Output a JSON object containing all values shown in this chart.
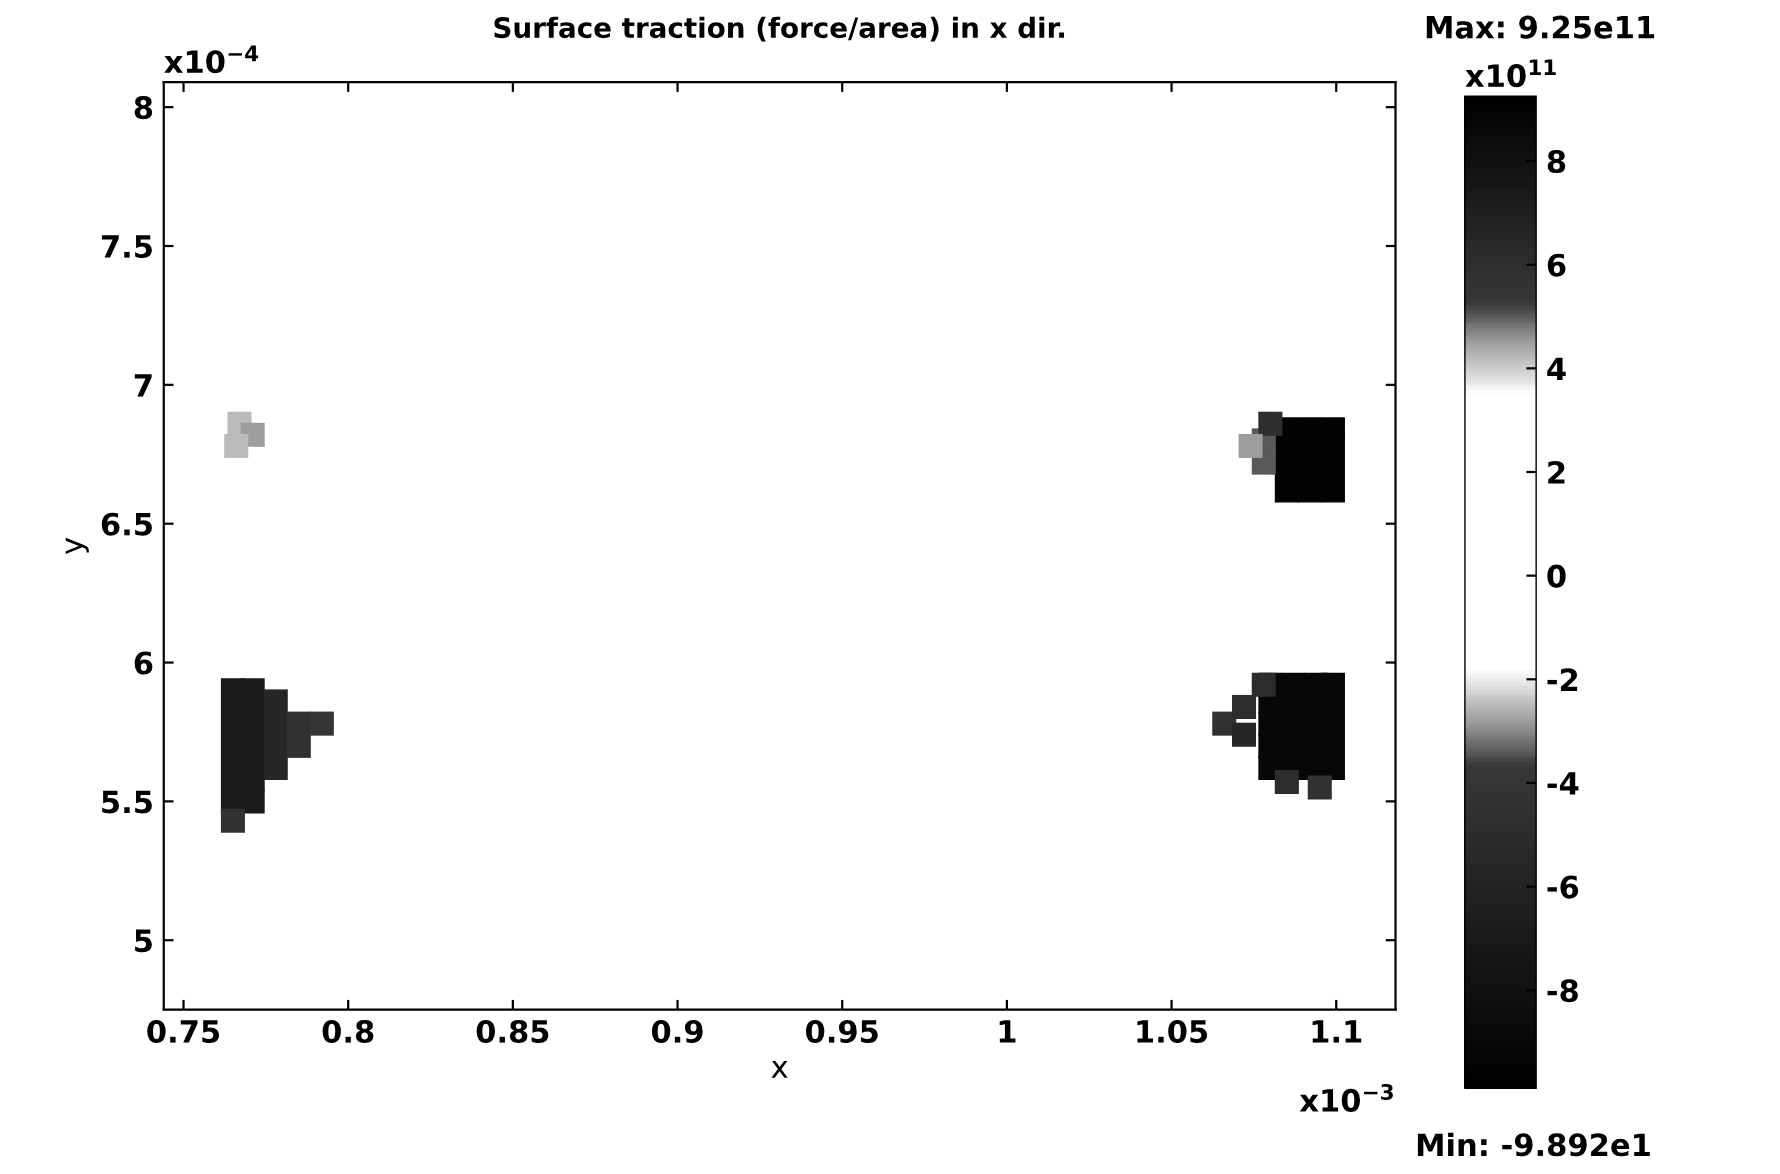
{
  "chart_data": {
    "type": "scatter",
    "title": "Surface traction (force/area) in x dir.",
    "xlabel": "x",
    "ylabel": "y",
    "x": [
      1.085,
      1.085,
      1.085,
      1.085,
      1.092,
      1.092,
      1.092,
      1.092,
      1.099,
      1.099,
      1.099,
      1.099,
      1.078,
      1.078,
      1.08,
      1.074,
      1.08,
      1.08,
      1.08,
      1.08,
      1.08,
      1.087,
      1.087,
      1.087,
      1.087,
      1.087,
      1.094,
      1.094,
      1.094,
      1.094,
      1.094,
      1.099,
      1.099,
      1.099,
      1.099,
      1.099,
      1.066,
      1.072,
      1.072,
      1.078,
      1.095,
      1.085,
      0.765,
      0.765,
      0.765,
      0.765,
      0.765,
      0.765,
      0.771,
      0.771,
      0.771,
      0.771,
      0.771,
      0.771,
      0.778,
      0.778,
      0.778,
      0.778,
      0.785,
      0.785,
      0.792,
      0.765,
      0.767,
      0.771,
      0.766
    ],
    "values": [
      6.62,
      6.7,
      6.78,
      6.84,
      6.62,
      6.7,
      6.78,
      6.84,
      6.62,
      6.7,
      6.78,
      6.84,
      6.8,
      6.72,
      6.86,
      6.78,
      5.62,
      5.7,
      5.78,
      5.86,
      5.92,
      5.62,
      5.7,
      5.78,
      5.86,
      5.92,
      5.62,
      5.7,
      5.78,
      5.86,
      5.92,
      5.62,
      5.7,
      5.78,
      5.86,
      5.92,
      5.78,
      5.74,
      5.84,
      5.92,
      5.55,
      5.57,
      5.5,
      5.58,
      5.66,
      5.74,
      5.82,
      5.9,
      5.5,
      5.58,
      5.66,
      5.74,
      5.82,
      5.9,
      5.62,
      5.7,
      5.78,
      5.86,
      5.7,
      5.78,
      5.78,
      5.43,
      6.86,
      6.82,
      6.78
    ],
    "cvalues": [
      9,
      9,
      9,
      9,
      9,
      9,
      9,
      9,
      9,
      9,
      9,
      9,
      5,
      5,
      6,
      4.5,
      -9,
      -9,
      -9,
      -9,
      -9,
      -9,
      -9,
      -9,
      -9,
      -9,
      -9,
      -9,
      -9,
      -9,
      -9,
      -9,
      -9,
      -9,
      -9,
      -9,
      -4.5,
      -5.5,
      -5,
      -5,
      -4.5,
      -5,
      -7,
      -7,
      -7,
      -7,
      -7,
      -7,
      -7,
      -7,
      -7,
      -7,
      -7,
      -7,
      -5.5,
      -5.5,
      -5.5,
      -5.5,
      -4.5,
      -4.5,
      -4,
      -4.5,
      4.2,
      4.5,
      4.2
    ],
    "marker": "square",
    "xlim": [
      0.744,
      1.118
    ],
    "xticks": [
      0.75,
      0.8,
      0.85,
      0.9,
      0.95,
      1,
      1.05,
      1.1
    ],
    "ylim": [
      4.75,
      8.09
    ],
    "yticks": [
      5,
      5.5,
      6,
      6.5,
      7,
      7.5,
      8
    ],
    "clim": [
      -9.892,
      9.25
    ],
    "cticks": [
      -8,
      -6,
      -4,
      -2,
      0,
      2,
      4,
      6,
      8
    ],
    "grid": false,
    "annotations": [
      "x10$^{−4}$",
      "x10$^{−3}$",
      "x10$^{11}$",
      "Max: 9.25e11",
      "Min: -9.892e1"
    ]
  }
}
